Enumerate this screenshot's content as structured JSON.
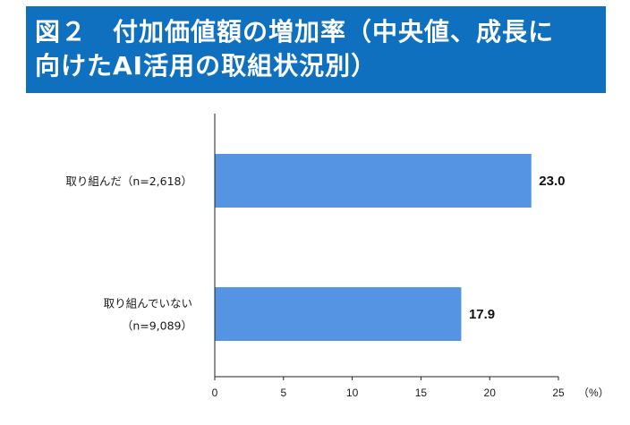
{
  "header": {
    "title_line1": "図２　付加価値額の増加率（中央値、成長に",
    "title_line2": "向けたAI活用の取組状況別）",
    "background": "#0f70bf"
  },
  "chart_data": {
    "type": "bar",
    "orientation": "horizontal",
    "categories": [
      {
        "label_lines": [
          "取り組んだ（n=2,618）"
        ],
        "value": 23.0,
        "value_label": "23.0"
      },
      {
        "label_lines": [
          "取り組んでいない",
          "（n=9,089）"
        ],
        "value": 17.9,
        "value_label": "17.9"
      }
    ],
    "xlim": [
      0,
      25
    ],
    "xticks": [
      "0",
      "5",
      "10",
      "15",
      "20",
      "25"
    ],
    "unit": "（%）",
    "bar_color": "#5494e3",
    "grid": false
  }
}
